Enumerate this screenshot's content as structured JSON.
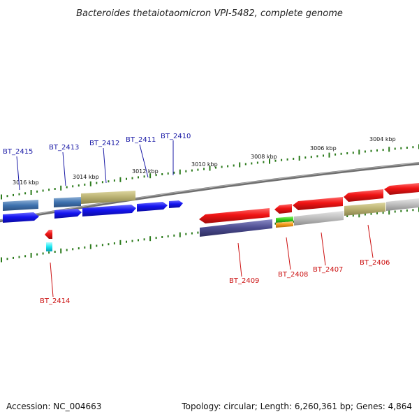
{
  "title": "Bacteroides thetaiotaomicron VPI-5482, complete genome",
  "footer": {
    "accession": "Accession: NC_004663",
    "summary": "Topology: circular; Length: 6,260,361 bp; Genes: 4,864"
  },
  "scale_labels": [
    "3016 kbp",
    "3014 kbp",
    "3012 kbp",
    "3010 kbp",
    "3008 kbp",
    "3006 kbp",
    "3004 kbp"
  ],
  "genes_forward": [
    "BT_2415",
    "BT_2413",
    "BT_2412",
    "BT_2411",
    "BT_2410"
  ],
  "genes_reverse": [
    "BT_2414",
    "BT_2409",
    "BT_2408",
    "BT_2407",
    "BT_2406"
  ],
  "colors": {
    "forward_cds": "#1a1ae6",
    "reverse_cds": "#e61a1a",
    "backbone": "#7a7a7a",
    "tick": "#2a7a1a",
    "blast_blue": "#3f73b0",
    "blast_olive": "#b8b070",
    "blast_purple": "#4a4a8e",
    "blast_grey": "#bdbdbd",
    "green": "#33cc1a",
    "orange": "#f29a1a",
    "cyan": "#1ae6f2"
  }
}
